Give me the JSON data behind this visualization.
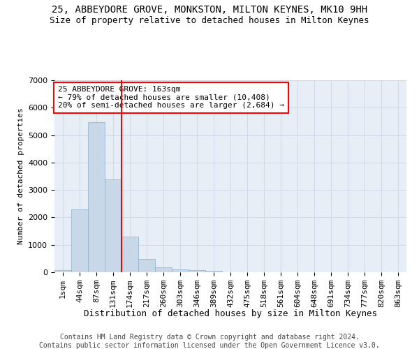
{
  "title": "25, ABBEYDORE GROVE, MONKSTON, MILTON KEYNES, MK10 9HH",
  "subtitle": "Size of property relative to detached houses in Milton Keynes",
  "xlabel": "Distribution of detached houses by size in Milton Keynes",
  "ylabel": "Number of detached properties",
  "footer_line1": "Contains HM Land Registry data © Crown copyright and database right 2024.",
  "footer_line2": "Contains public sector information licensed under the Open Government Licence v3.0.",
  "bar_labels": [
    "1sqm",
    "44sqm",
    "87sqm",
    "131sqm",
    "174sqm",
    "217sqm",
    "260sqm",
    "303sqm",
    "346sqm",
    "389sqm",
    "432sqm",
    "475sqm",
    "518sqm",
    "561sqm",
    "604sqm",
    "648sqm",
    "691sqm",
    "734sqm",
    "777sqm",
    "820sqm",
    "863sqm"
  ],
  "bar_values": [
    75,
    2280,
    5480,
    3380,
    1310,
    490,
    175,
    95,
    70,
    60,
    0,
    0,
    0,
    0,
    0,
    0,
    0,
    0,
    0,
    0,
    0
  ],
  "bar_color": "#c8d8e8",
  "bar_edgecolor": "#8ab0cc",
  "vline_x": 3.5,
  "vline_color": "red",
  "ylim": [
    0,
    7000
  ],
  "yticks": [
    0,
    1000,
    2000,
    3000,
    4000,
    5000,
    6000,
    7000
  ],
  "annotation_text": "25 ABBEYDORE GROVE: 163sqm\n← 79% of detached houses are smaller (10,408)\n20% of semi-detached houses are larger (2,684) →",
  "annotation_box_color": "white",
  "annotation_box_edgecolor": "red",
  "grid_color": "#d0d8e8",
  "background_color": "#e8eef6",
  "title_fontsize": 10,
  "subtitle_fontsize": 9,
  "ylabel_fontsize": 8,
  "xlabel_fontsize": 9,
  "tick_fontsize": 8,
  "annot_fontsize": 8,
  "footer_fontsize": 7
}
